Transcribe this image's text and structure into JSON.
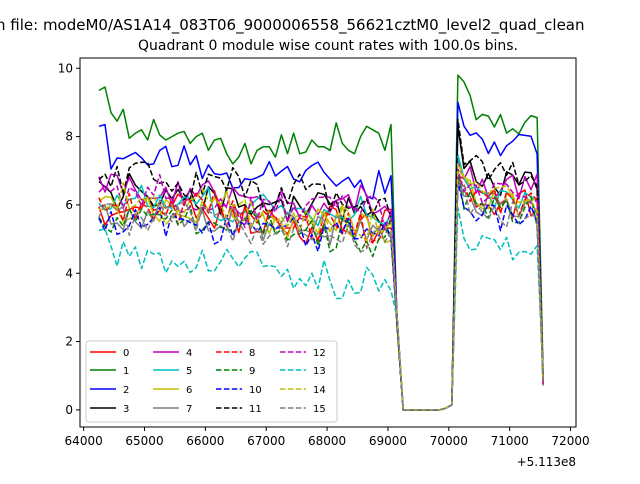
{
  "chart_data": {
    "type": "line",
    "suptitle": "n file: modeM0/AS1A14_083T06_9000006558_56621cztM0_level2_quad_clean",
    "title": "Quadrant 0 module wise count rates with 100.0s bins.",
    "xlabel": "",
    "ylabel": "",
    "x_offset_label": "+5.113e8",
    "xlim": [
      63940,
      72090
    ],
    "ylim": [
      -0.5,
      10.3
    ],
    "x_ticks": [
      64000,
      65000,
      66000,
      67000,
      68000,
      69000,
      70000,
      71000,
      72000
    ],
    "x_tick_labels": [
      "64000",
      "65000",
      "66000",
      "67000",
      "68000",
      "69000",
      "70000",
      "71000",
      "72000"
    ],
    "y_ticks": [
      0,
      2,
      4,
      6,
      8,
      10
    ],
    "y_tick_labels": [
      "0",
      "2",
      "4",
      "6",
      "8",
      "10"
    ],
    "x_start": 64250,
    "x_step": 100,
    "segment_1": {
      "start_index": 0,
      "end_index": 48
    },
    "gap": {
      "start_index": 50,
      "end_index": 56,
      "value": 0.0
    },
    "segment_2": {
      "start_index": 59,
      "end_index": 73
    },
    "legend_location": "lower-left",
    "legend_columns": 4,
    "series": [
      {
        "name": "0",
        "color": "#ff0000",
        "dash": "solid",
        "mean1": 5.7,
        "mean2": 6.0,
        "amp": 0.45
      },
      {
        "name": "1",
        "color": "#008000",
        "dash": "solid",
        "mean1": 7.9,
        "mean2": 8.4,
        "amp": 0.35,
        "first": 9.35,
        "peak": 9.8,
        "profile": [
          9.35,
          9.45,
          8.7,
          8.45,
          8.8,
          7.95,
          8.1,
          8.2,
          7.9,
          8.5,
          8.05,
          7.9,
          8.0,
          8.1,
          8.15,
          7.8,
          8.0,
          8.1,
          7.6,
          7.9,
          7.95,
          7.5,
          7.2,
          7.4,
          7.8,
          7.2,
          7.6,
          7.7,
          7.7,
          7.4,
          8.05,
          7.5,
          8.1,
          7.5,
          7.55,
          7.9,
          7.7,
          7.7,
          7.6,
          8.4,
          7.8,
          7.6,
          7.5,
          8.0,
          8.3,
          8.2,
          8.1,
          7.6,
          8.35
        ]
      },
      {
        "name": "2",
        "color": "#0000ff",
        "dash": "solid",
        "mean1": 7.0,
        "mean2": 7.7,
        "amp": 0.35,
        "first": 8.3,
        "peak": 9.0
      },
      {
        "name": "3",
        "color": "#000000",
        "dash": "solid",
        "mean1": 6.1,
        "mean2": 6.6,
        "amp": 0.4,
        "peak": 8.3
      },
      {
        "name": "4",
        "color": "#bf00bf",
        "dash": "solid",
        "mean1": 6.2,
        "mean2": 6.5,
        "amp": 0.4
      },
      {
        "name": "5",
        "color": "#00bfbf",
        "dash": "solid",
        "mean1": 5.9,
        "mean2": 6.2,
        "amp": 0.35
      },
      {
        "name": "6",
        "color": "#bfbf00",
        "dash": "solid",
        "mean1": 5.7,
        "mean2": 6.0,
        "amp": 0.4
      },
      {
        "name": "7",
        "color": "#808080",
        "dash": "solid",
        "mean1": 5.5,
        "mean2": 5.9,
        "amp": 0.4
      },
      {
        "name": "8",
        "color": "#ff0000",
        "dash": "dashed",
        "mean1": 5.6,
        "mean2": 6.0,
        "amp": 0.45
      },
      {
        "name": "9",
        "color": "#008000",
        "dash": "dashed",
        "mean1": 5.5,
        "mean2": 5.8,
        "amp": 0.45
      },
      {
        "name": "10",
        "color": "#0000ff",
        "dash": "dashed",
        "mean1": 5.3,
        "mean2": 5.6,
        "amp": 0.4
      },
      {
        "name": "11",
        "color": "#000000",
        "dash": "dashed",
        "mean1": 6.4,
        "mean2": 6.9,
        "amp": 0.4,
        "peak": 8.5
      },
      {
        "name": "12",
        "color": "#bf00bf",
        "dash": "dashed",
        "mean1": 6.0,
        "mean2": 6.3,
        "amp": 0.4
      },
      {
        "name": "13",
        "color": "#00bfbf",
        "dash": "dashed",
        "mean1": 4.1,
        "mean2": 4.7,
        "amp": 0.35,
        "first": 5.25
      },
      {
        "name": "14",
        "color": "#bfbf00",
        "dash": "dashed",
        "mean1": 5.8,
        "mean2": 6.2,
        "amp": 0.4
      },
      {
        "name": "15",
        "color": "#808080",
        "dash": "dashed",
        "mean1": 5.4,
        "mean2": 5.7,
        "amp": 0.4
      }
    ]
  }
}
